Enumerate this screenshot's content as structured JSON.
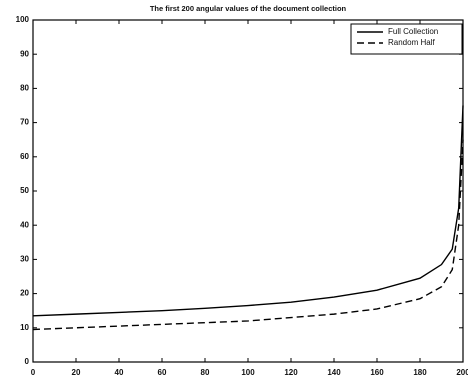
{
  "chart_data": {
    "type": "line",
    "title": "The first 200 angular values of the document collection",
    "x": [
      0,
      20,
      40,
      60,
      80,
      100,
      120,
      140,
      160,
      180,
      190,
      195,
      198,
      200
    ],
    "series": [
      {
        "name": "Full Collection",
        "color": "#000000",
        "style": "solid",
        "values": [
          13.5,
          14,
          14.5,
          15,
          15.7,
          16.5,
          17.5,
          19,
          21,
          24.5,
          28.5,
          33,
          45,
          75
        ]
      },
      {
        "name": "Random Half",
        "color": "#000000",
        "style": "dashed",
        "values": [
          9.5,
          10,
          10.5,
          11,
          11.5,
          12,
          13,
          14,
          15.5,
          18.5,
          22,
          27,
          40,
          65
        ]
      }
    ],
    "xlim": [
      0,
      200
    ],
    "xticks": [
      0,
      20,
      40,
      60,
      80,
      100,
      120,
      140,
      160,
      180,
      200
    ],
    "ylim": [
      0,
      100
    ],
    "yticks": [
      0,
      10,
      20,
      30,
      40,
      50,
      60,
      70,
      80,
      90,
      100
    ],
    "grid": false,
    "legend": "upper right"
  }
}
